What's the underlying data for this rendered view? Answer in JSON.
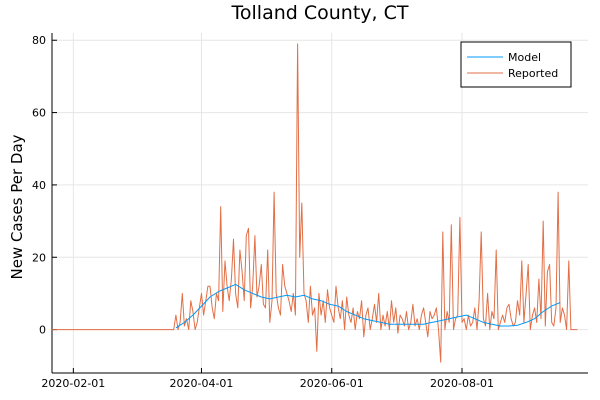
{
  "chart_data": {
    "type": "line",
    "title": "Tolland County, CT",
    "xlabel": "",
    "ylabel": "New Cases Per Day",
    "x_ticks": [
      "2020-02-01",
      "2020-04-01",
      "2020-06-01",
      "2020-08-01"
    ],
    "y_ticks": [
      0,
      20,
      40,
      60,
      80
    ],
    "xlim": [
      "2020-01-22",
      "2020-09-29"
    ],
    "ylim": [
      -12,
      82
    ],
    "grid": true,
    "legend_position": "top-right",
    "colors": {
      "Model": "#009af9",
      "Reported": "#e26f46"
    },
    "series": [
      {
        "name": "Model",
        "x": [
          "2020-03-20",
          "2020-03-24",
          "2020-03-28",
          "2020-04-01",
          "2020-04-05",
          "2020-04-09",
          "2020-04-13",
          "2020-04-17",
          "2020-04-21",
          "2020-04-25",
          "2020-04-29",
          "2020-05-03",
          "2020-05-07",
          "2020-05-11",
          "2020-05-15",
          "2020-05-19",
          "2020-05-23",
          "2020-05-27",
          "2020-05-31",
          "2020-06-04",
          "2020-06-08",
          "2020-06-12",
          "2020-06-16",
          "2020-06-20",
          "2020-06-24",
          "2020-06-28",
          "2020-07-02",
          "2020-07-06",
          "2020-07-10",
          "2020-07-14",
          "2020-07-18",
          "2020-07-22",
          "2020-07-26",
          "2020-07-30",
          "2020-08-03",
          "2020-08-07",
          "2020-08-11",
          "2020-08-15",
          "2020-08-19",
          "2020-08-23",
          "2020-08-27",
          "2020-08-31",
          "2020-09-04",
          "2020-09-08",
          "2020-09-12",
          "2020-09-16"
        ],
        "values": [
          0.5,
          2,
          4,
          6.5,
          9,
          10.5,
          11.5,
          12.5,
          11,
          10,
          9,
          8.5,
          9,
          9.5,
          9,
          9.5,
          8.5,
          8,
          7,
          6.5,
          5,
          4,
          3,
          2.5,
          2,
          1.5,
          1.5,
          1.5,
          1.5,
          1.5,
          2,
          2.5,
          3,
          3.5,
          4,
          3,
          2,
          1.5,
          1,
          1,
          1.2,
          2,
          3,
          5,
          6.5,
          7.5
        ]
      },
      {
        "name": "Reported",
        "x": [
          "2020-01-22",
          "2020-03-19",
          "2020-03-20",
          "2020-03-21",
          "2020-03-22",
          "2020-03-23",
          "2020-03-24",
          "2020-03-25",
          "2020-03-26",
          "2020-03-27",
          "2020-03-28",
          "2020-03-29",
          "2020-03-30",
          "2020-03-31",
          "2020-04-01",
          "2020-04-02",
          "2020-04-03",
          "2020-04-04",
          "2020-04-05",
          "2020-04-06",
          "2020-04-07",
          "2020-04-08",
          "2020-04-09",
          "2020-04-10",
          "2020-04-11",
          "2020-04-12",
          "2020-04-13",
          "2020-04-14",
          "2020-04-15",
          "2020-04-16",
          "2020-04-17",
          "2020-04-18",
          "2020-04-19",
          "2020-04-20",
          "2020-04-21",
          "2020-04-22",
          "2020-04-23",
          "2020-04-24",
          "2020-04-25",
          "2020-04-26",
          "2020-04-27",
          "2020-04-28",
          "2020-04-29",
          "2020-04-30",
          "2020-05-01",
          "2020-05-02",
          "2020-05-03",
          "2020-05-04",
          "2020-05-05",
          "2020-05-06",
          "2020-05-07",
          "2020-05-08",
          "2020-05-09",
          "2020-05-10",
          "2020-05-11",
          "2020-05-12",
          "2020-05-13",
          "2020-05-14",
          "2020-05-15",
          "2020-05-16",
          "2020-05-17",
          "2020-05-18",
          "2020-05-19",
          "2020-05-20",
          "2020-05-21",
          "2020-05-22",
          "2020-05-23",
          "2020-05-24",
          "2020-05-25",
          "2020-05-26",
          "2020-05-27",
          "2020-05-28",
          "2020-05-29",
          "2020-05-30",
          "2020-05-31",
          "2020-06-01",
          "2020-06-02",
          "2020-06-03",
          "2020-06-04",
          "2020-06-05",
          "2020-06-06",
          "2020-06-07",
          "2020-06-08",
          "2020-06-09",
          "2020-06-10",
          "2020-06-11",
          "2020-06-12",
          "2020-06-13",
          "2020-06-14",
          "2020-06-15",
          "2020-06-16",
          "2020-06-17",
          "2020-06-18",
          "2020-06-19",
          "2020-06-20",
          "2020-06-21",
          "2020-06-22",
          "2020-06-23",
          "2020-06-24",
          "2020-06-25",
          "2020-06-26",
          "2020-06-27",
          "2020-06-28",
          "2020-06-29",
          "2020-06-30",
          "2020-07-01",
          "2020-07-02",
          "2020-07-03",
          "2020-07-04",
          "2020-07-05",
          "2020-07-06",
          "2020-07-07",
          "2020-07-08",
          "2020-07-09",
          "2020-07-10",
          "2020-07-11",
          "2020-07-12",
          "2020-07-13",
          "2020-07-14",
          "2020-07-15",
          "2020-07-16",
          "2020-07-17",
          "2020-07-18",
          "2020-07-19",
          "2020-07-20",
          "2020-07-21",
          "2020-07-22",
          "2020-07-23",
          "2020-07-24",
          "2020-07-25",
          "2020-07-26",
          "2020-07-27",
          "2020-07-28",
          "2020-07-29",
          "2020-07-30",
          "2020-07-31",
          "2020-08-01",
          "2020-08-02",
          "2020-08-03",
          "2020-08-04",
          "2020-08-05",
          "2020-08-06",
          "2020-08-07",
          "2020-08-08",
          "2020-08-09",
          "2020-08-10",
          "2020-08-11",
          "2020-08-12",
          "2020-08-13",
          "2020-08-14",
          "2020-08-15",
          "2020-08-16",
          "2020-08-17",
          "2020-08-18",
          "2020-08-19",
          "2020-08-20",
          "2020-08-21",
          "2020-08-22",
          "2020-08-23",
          "2020-08-24",
          "2020-08-25",
          "2020-08-26",
          "2020-08-27",
          "2020-08-28",
          "2020-08-29",
          "2020-08-30",
          "2020-08-31",
          "2020-09-01",
          "2020-09-02",
          "2020-09-03",
          "2020-09-04",
          "2020-09-05",
          "2020-09-06",
          "2020-09-07",
          "2020-09-08",
          "2020-09-09",
          "2020-09-10",
          "2020-09-11",
          "2020-09-12",
          "2020-09-13",
          "2020-09-14",
          "2020-09-15",
          "2020-09-16",
          "2020-09-17",
          "2020-09-18",
          "2020-09-19",
          "2020-09-20",
          "2020-09-21",
          "2020-09-22",
          "2020-09-23",
          "2020-09-24"
        ],
        "values": [
          0,
          0,
          4,
          0,
          2,
          10,
          1,
          3,
          0,
          8,
          5,
          0,
          2,
          6,
          10,
          4,
          8,
          12,
          12,
          6,
          3,
          10,
          8,
          34,
          5,
          19,
          12,
          8,
          14,
          25,
          10,
          6,
          22,
          16,
          8,
          26,
          28,
          6,
          12,
          26,
          9,
          12,
          18,
          7,
          6,
          22,
          2,
          8,
          38,
          10,
          6,
          4,
          18,
          12,
          10,
          8,
          5,
          10,
          4,
          79,
          20,
          35,
          10,
          8,
          2,
          12,
          4,
          6,
          -6,
          10,
          4,
          8,
          2,
          11,
          6,
          4,
          2,
          12,
          6,
          3,
          8,
          0,
          9,
          4,
          2,
          6,
          0,
          5,
          3,
          8,
          -2,
          4,
          6,
          0,
          3,
          7,
          2,
          10,
          0,
          4,
          1,
          5,
          0,
          8,
          2,
          6,
          -1,
          4,
          3,
          1,
          5,
          0,
          2,
          7,
          1,
          3,
          0,
          4,
          6,
          2,
          -2,
          5,
          3,
          4,
          6,
          0,
          -9,
          27,
          0,
          5,
          2,
          29,
          0,
          3,
          4,
          31,
          2,
          3,
          0,
          4,
          1,
          2,
          6,
          0,
          8,
          27,
          3,
          1,
          10,
          0,
          5,
          3,
          22,
          0,
          2,
          4,
          2,
          6,
          7,
          3,
          1,
          2,
          8,
          4,
          19,
          2,
          10,
          18,
          0,
          4,
          6,
          2,
          14,
          3,
          30,
          1,
          16,
          18,
          2,
          1,
          6,
          38,
          2,
          6,
          4,
          0,
          19,
          0,
          0,
          0,
          0
        ]
      }
    ]
  }
}
